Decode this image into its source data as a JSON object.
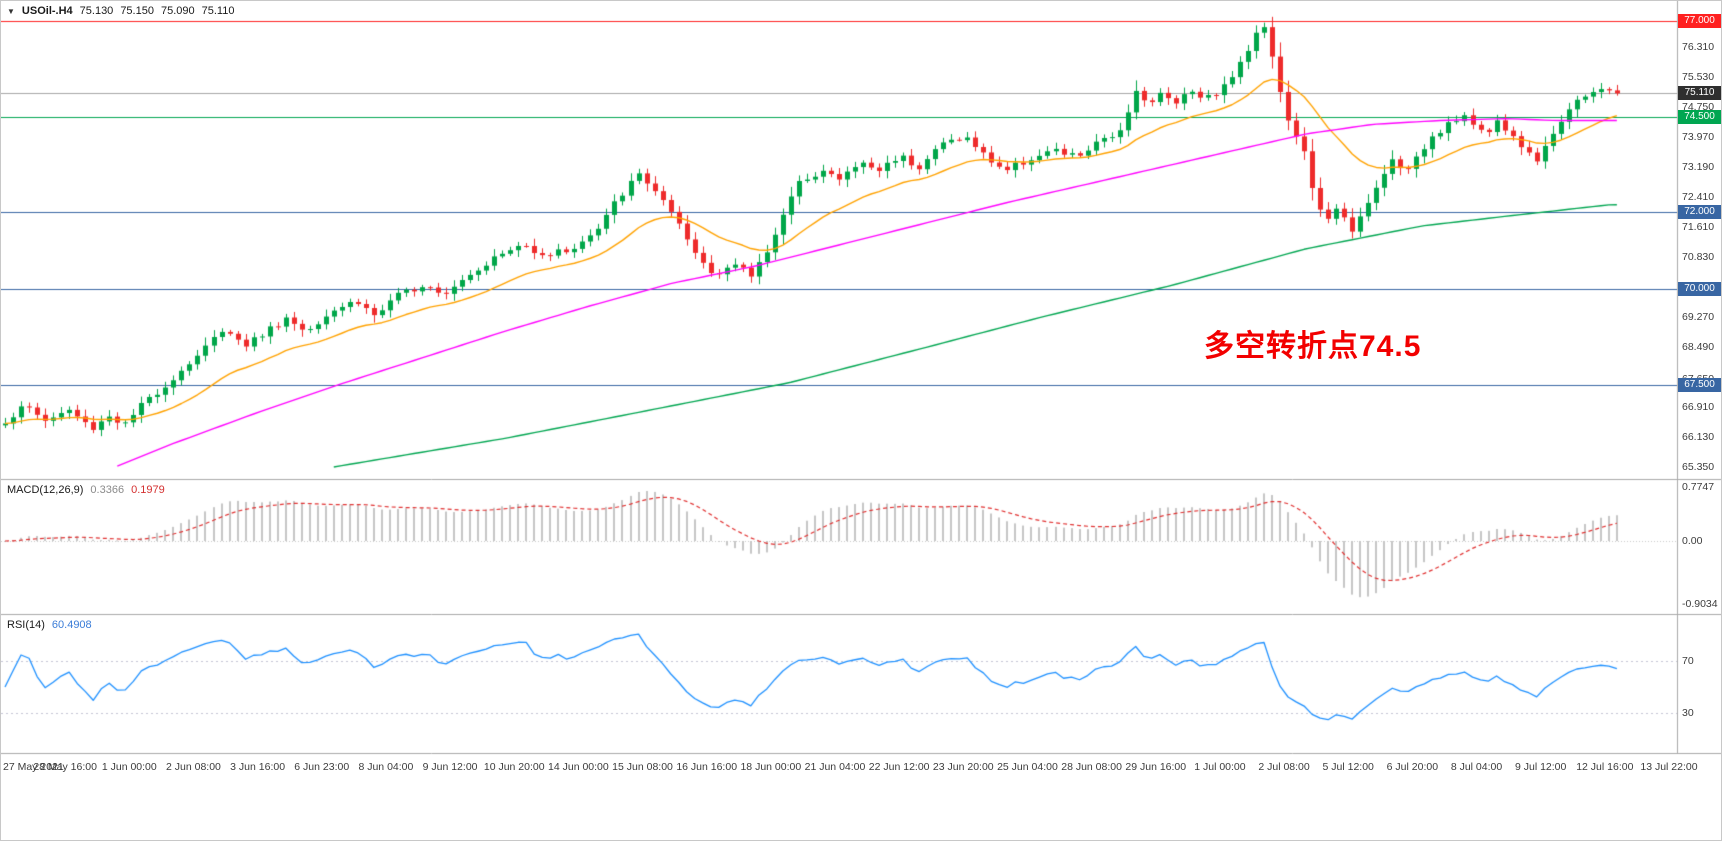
{
  "window": {
    "symbol_period": "USOil-.H4",
    "open": "75.130",
    "high": "75.150",
    "low": "75.090",
    "close": "75.110"
  },
  "annotation": {
    "text": "多空转折点74.5",
    "color": "#f20000"
  },
  "macd": {
    "name": "MACD(12,26,9)",
    "main_value": "0.3366",
    "signal_value": "0.1979",
    "scale": {
      "top": "0.7747",
      "zero": "0.00",
      "bottom": "-0.9034"
    }
  },
  "rsi": {
    "name": "RSI(14)",
    "value": "60.4908",
    "levels": [
      "70",
      "30"
    ]
  },
  "colors": {
    "background": "#ffffff",
    "bull": "#00a649",
    "bear": "#ee2b2b",
    "ma_fast": "#ffa200",
    "ma_mid": "#ff00ff",
    "ma_slow": "#00a651",
    "macd_histogram": "#c6c6c6",
    "macd_signal": "#e03030",
    "rsi_line": "#1e90ff",
    "scale_text": "#3c3c3c",
    "separator": "#a9a9a9"
  },
  "chart_data": {
    "type": "candlestick",
    "symbol": "USOil-",
    "timeframe": "H4",
    "title": "USOil-.H4 75.130 75.150 75.090 75.110",
    "ylim": [
      65.35,
      77.52
    ],
    "bars_total": 209,
    "bars_drawn": 202,
    "price_axis_ticks": [
      "76.310",
      "75.530",
      "74.750",
      "73.970",
      "73.190",
      "72.410",
      "71.610",
      "70.830",
      "69.270",
      "68.490",
      "67.650",
      "66.910",
      "66.130",
      "65.350"
    ],
    "horizontal_lines": [
      {
        "price": 77.0,
        "label": "77.000",
        "color": "#ff2020",
        "type": "resistance"
      },
      {
        "price": 74.5,
        "label": "74.500",
        "color": "#00a651",
        "type": "pivot"
      },
      {
        "price": 72.0,
        "label": "72.000",
        "color": "#3866a3",
        "type": "support"
      },
      {
        "price": 70.0,
        "label": "70.000",
        "color": "#3866a3",
        "type": "support"
      },
      {
        "price": 67.5,
        "label": "67.500",
        "color": "#3866a3",
        "type": "support"
      }
    ],
    "current_price": {
      "value": 75.11,
      "label": "75.110",
      "line_color": "#a6a6a6",
      "badge_color": "#2f2f2f"
    },
    "time_labels": [
      "27 May 2021",
      "28 May 16:00",
      "1 Jun 00:00",
      "2 Jun 08:00",
      "3 Jun 16:00",
      "6 Jun 23:00",
      "8 Jun 04:00",
      "9 Jun 12:00",
      "10 Jun 20:00",
      "14 Jun 00:00",
      "15 Jun 08:00",
      "16 Jun 16:00",
      "18 Jun 00:00",
      "21 Jun 04:00",
      "22 Jun 12:00",
      "23 Jun 20:00",
      "25 Jun 04:00",
      "28 Jun 08:00",
      "29 Jun 16:00",
      "1 Jul 00:00",
      "2 Jul 08:00",
      "5 Jul 12:00",
      "6 Jul 20:00",
      "8 Jul 04:00",
      "9 Jul 12:00",
      "12 Jul 16:00",
      "13 Jul 22:00"
    ],
    "price_path": [
      [
        0.0,
        66.55
      ],
      [
        0.012,
        66.95
      ],
      [
        0.025,
        66.55
      ],
      [
        0.038,
        66.85
      ],
      [
        0.052,
        66.35
      ],
      [
        0.062,
        66.7
      ],
      [
        0.072,
        66.45
      ],
      [
        0.085,
        67.1
      ],
      [
        0.098,
        67.55
      ],
      [
        0.11,
        68.05
      ],
      [
        0.122,
        68.55
      ],
      [
        0.132,
        69.05
      ],
      [
        0.142,
        68.5
      ],
      [
        0.155,
        68.85
      ],
      [
        0.168,
        69.25
      ],
      [
        0.18,
        68.9
      ],
      [
        0.195,
        69.45
      ],
      [
        0.21,
        69.7
      ],
      [
        0.222,
        69.3
      ],
      [
        0.238,
        69.9
      ],
      [
        0.252,
        70.15
      ],
      [
        0.263,
        69.9
      ],
      [
        0.278,
        70.4
      ],
      [
        0.295,
        70.85
      ],
      [
        0.31,
        71.15
      ],
      [
        0.325,
        70.9
      ],
      [
        0.34,
        71.05
      ],
      [
        0.355,
        71.5
      ],
      [
        0.368,
        72.4
      ],
      [
        0.38,
        73.0
      ],
      [
        0.39,
        72.55
      ],
      [
        0.402,
        71.75
      ],
      [
        0.413,
        70.95
      ],
      [
        0.424,
        70.4
      ],
      [
        0.436,
        70.65
      ],
      [
        0.447,
        70.35
      ],
      [
        0.456,
        70.95
      ],
      [
        0.468,
        72.1
      ],
      [
        0.478,
        72.9
      ],
      [
        0.49,
        73.1
      ],
      [
        0.5,
        72.85
      ],
      [
        0.512,
        73.3
      ],
      [
        0.524,
        73.1
      ],
      [
        0.536,
        73.5
      ],
      [
        0.548,
        73.2
      ],
      [
        0.562,
        73.8
      ],
      [
        0.575,
        74.0
      ],
      [
        0.588,
        73.45
      ],
      [
        0.6,
        73.1
      ],
      [
        0.614,
        73.4
      ],
      [
        0.628,
        73.6
      ],
      [
        0.642,
        73.45
      ],
      [
        0.655,
        73.8
      ],
      [
        0.666,
        74.05
      ],
      [
        0.673,
        74.6
      ],
      [
        0.679,
        75.4
      ],
      [
        0.685,
        74.7
      ],
      [
        0.692,
        75.1
      ],
      [
        0.701,
        74.9
      ],
      [
        0.711,
        75.2
      ],
      [
        0.721,
        75.0
      ],
      [
        0.731,
        75.3
      ],
      [
        0.741,
        75.9
      ],
      [
        0.75,
        76.75
      ],
      [
        0.755,
        76.9
      ],
      [
        0.762,
        75.6
      ],
      [
        0.77,
        74.2
      ],
      [
        0.777,
        73.9
      ],
      [
        0.785,
        72.3
      ],
      [
        0.793,
        71.9
      ],
      [
        0.8,
        72.1
      ],
      [
        0.807,
        71.4
      ],
      [
        0.814,
        72.0
      ],
      [
        0.822,
        72.6
      ],
      [
        0.83,
        73.4
      ],
      [
        0.838,
        73.0
      ],
      [
        0.847,
        73.55
      ],
      [
        0.856,
        74.0
      ],
      [
        0.866,
        74.35
      ],
      [
        0.876,
        74.45
      ],
      [
        0.886,
        74.1
      ],
      [
        0.895,
        74.35
      ],
      [
        0.903,
        74.05
      ],
      [
        0.911,
        73.6
      ],
      [
        0.918,
        73.4
      ],
      [
        0.926,
        74.0
      ],
      [
        0.936,
        74.6
      ],
      [
        0.946,
        75.0
      ],
      [
        0.955,
        75.3
      ],
      [
        0.962,
        75.11
      ]
    ],
    "ma_fast": {
      "color": "#ffa200",
      "period": 18
    },
    "ma_mid": {
      "color": "#ff00ff",
      "path": [
        [
          0.066,
          65.35
        ],
        [
          0.1,
          65.95
        ],
        [
          0.15,
          66.75
        ],
        [
          0.2,
          67.5
        ],
        [
          0.25,
          68.2
        ],
        [
          0.3,
          68.9
        ],
        [
          0.35,
          69.55
        ],
        [
          0.4,
          70.15
        ],
        [
          0.45,
          70.6
        ],
        [
          0.5,
          71.15
        ],
        [
          0.55,
          71.7
        ],
        [
          0.6,
          72.25
        ],
        [
          0.65,
          72.75
        ],
        [
          0.7,
          73.25
        ],
        [
          0.74,
          73.65
        ],
        [
          0.78,
          74.05
        ],
        [
          0.82,
          74.3
        ],
        [
          0.86,
          74.4
        ],
        [
          0.9,
          74.45
        ],
        [
          0.93,
          74.4
        ],
        [
          0.962,
          74.4
        ]
      ]
    },
    "ma_slow": {
      "color": "#00a651",
      "path": [
        [
          0.197,
          65.35
        ],
        [
          0.3,
          66.1
        ],
        [
          0.4,
          66.95
        ],
        [
          0.47,
          67.55
        ],
        [
          0.55,
          68.45
        ],
        [
          0.62,
          69.25
        ],
        [
          0.7,
          70.1
        ],
        [
          0.78,
          71.05
        ],
        [
          0.85,
          71.65
        ],
        [
          0.9,
          71.9
        ],
        [
          0.962,
          72.2
        ]
      ]
    },
    "macd_panel": {
      "scale_labels": [
        "0.7747",
        "0.00",
        "-0.9034"
      ],
      "current_main": 0.3366,
      "current_signal": 0.1979
    },
    "rsi_panel": {
      "levels": [
        70,
        30
      ],
      "current": 60.4908
    }
  }
}
